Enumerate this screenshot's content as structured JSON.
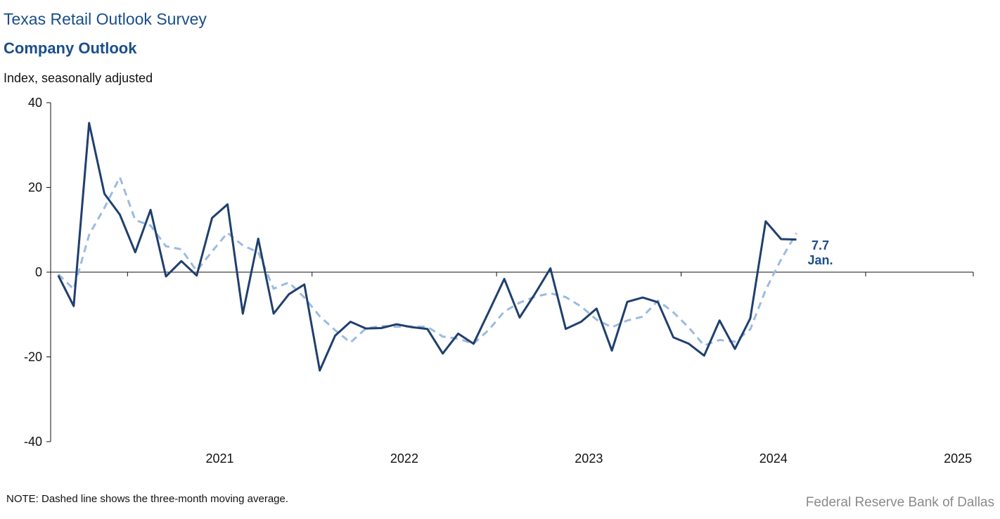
{
  "header": {
    "title": "Texas Retail Outlook Survey",
    "subtitle": "Company Outlook",
    "y_unit": "Index, seasonally adjusted"
  },
  "note": "NOTE: Dashed line shows the three-month  moving average.",
  "source": "Federal Reserve Bank of Dallas",
  "colors": {
    "index_line": "#1f3f6e",
    "moving_average_line": "#9bbbe0",
    "axis": "#111111",
    "title": "#1a4e8a",
    "callout": "#1a4e8a",
    "source": "#8a8a8a"
  },
  "chart_data": {
    "type": "line",
    "title": "Company Outlook",
    "ylabel": "Index, seasonally adjusted",
    "ylim": [
      -40,
      40
    ],
    "y_ticks": [
      40,
      20,
      0,
      -20,
      -40
    ],
    "y_tick_labels": [
      "40",
      "20",
      "0",
      "-20",
      "-40"
    ],
    "x_start": "2020-08",
    "x_end": "2025-08",
    "x_tick_labels": [
      "2021",
      "2022",
      "2023",
      "2024",
      "2025"
    ],
    "grid": false,
    "legend": "none",
    "series": [
      {
        "style": "solid",
        "x": [
          "2020-08",
          "2020-09",
          "2020-10",
          "2020-11",
          "2020-12",
          "2021-01",
          "2021-02",
          "2021-03",
          "2021-04",
          "2021-05",
          "2021-06",
          "2021-07",
          "2021-08",
          "2021-09",
          "2021-10",
          "2021-11",
          "2021-12",
          "2022-01",
          "2022-02",
          "2022-03",
          "2022-04",
          "2022-05",
          "2022-06",
          "2022-07",
          "2022-08",
          "2022-09",
          "2022-10",
          "2022-11",
          "2022-12",
          "2023-01",
          "2023-02",
          "2023-03",
          "2023-04",
          "2023-05",
          "2023-06",
          "2023-07",
          "2023-08",
          "2023-09",
          "2023-10",
          "2023-11",
          "2023-12",
          "2024-01",
          "2024-02",
          "2024-03",
          "2024-04",
          "2024-05",
          "2024-06",
          "2024-07",
          "2024-08",
          "2024-09",
          "2024-10",
          "2024-11",
          "2024-12",
          "2025-01"
        ],
        "values": [
          -0.8,
          -8.0,
          35.2,
          18.5,
          13.6,
          4.7,
          14.7,
          -1.0,
          2.6,
          -0.8,
          12.8,
          16.0,
          -9.8,
          7.9,
          -9.8,
          -5.2,
          -2.9,
          -23.2,
          -15.0,
          -11.7,
          -13.3,
          -13.2,
          -12.3,
          -13.0,
          -13.4,
          -19.2,
          -14.5,
          -16.9,
          -9.3,
          -1.6,
          -10.7,
          -5.1,
          0.9,
          -13.4,
          -11.7,
          -8.6,
          -18.5,
          -7.0,
          -6.0,
          -7.1,
          -15.4,
          -16.9,
          -19.7,
          -11.4,
          -18.1,
          -10.9,
          12.0,
          7.8,
          7.7,
          null,
          null,
          null,
          null,
          null
        ]
      },
      {
        "style": "dashed",
        "x": [
          "2020-08",
          "2020-09",
          "2020-10",
          "2020-11",
          "2020-12",
          "2021-01",
          "2021-02",
          "2021-03",
          "2021-04",
          "2021-05",
          "2021-06",
          "2021-07",
          "2021-08",
          "2021-09",
          "2021-10",
          "2021-11",
          "2021-12",
          "2022-01",
          "2022-02",
          "2022-03",
          "2022-04",
          "2022-05",
          "2022-06",
          "2022-07",
          "2022-08",
          "2022-09",
          "2022-10",
          "2022-11",
          "2022-12",
          "2023-01",
          "2023-02",
          "2023-03",
          "2023-04",
          "2023-05",
          "2023-06",
          "2023-07",
          "2023-08",
          "2023-09",
          "2023-10",
          "2023-11",
          "2023-12",
          "2024-01",
          "2024-02",
          "2024-03",
          "2024-04",
          "2024-05",
          "2024-06",
          "2024-07",
          "2024-08"
        ],
        "values": [
          -0.5,
          -4.0,
          8.8,
          15.2,
          22.4,
          12.3,
          11.0,
          6.1,
          5.4,
          0.3,
          4.9,
          9.3,
          6.3,
          4.7,
          -3.9,
          -2.4,
          -6.0,
          -10.4,
          -13.7,
          -16.6,
          -13.3,
          -12.7,
          -12.9,
          -12.8,
          -12.9,
          -15.2,
          -15.7,
          -16.9,
          -13.6,
          -9.3,
          -7.2,
          -5.8,
          -5.0,
          -5.9,
          -8.1,
          -11.2,
          -13.0,
          -11.4,
          -10.5,
          -6.7,
          -9.5,
          -13.1,
          -17.3,
          -16.0,
          -16.4,
          -13.5,
          -4.2,
          3.0,
          9.2
        ]
      }
    ],
    "annotations": [
      {
        "value_label": "7.7",
        "date_label": "Jan."
      }
    ]
  }
}
